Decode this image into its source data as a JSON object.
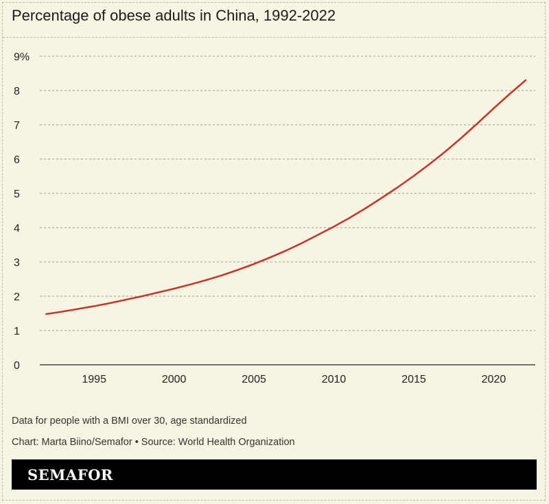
{
  "title": "Percentage of obese adults in China, 1992-2022",
  "chart_data": {
    "type": "line",
    "title": "Percentage of obese adults in China, 1992-2022",
    "xlabel": "",
    "ylabel": "",
    "xlim": [
      1991.6,
      2022.6
    ],
    "ylim": [
      0,
      9
    ],
    "grid": true,
    "y_ticks": [
      0,
      1,
      2,
      3,
      4,
      5,
      6,
      7,
      8,
      9
    ],
    "y_tick_labels": [
      "0",
      "1",
      "2",
      "3",
      "4",
      "5",
      "6",
      "7",
      "8",
      "9%"
    ],
    "x_ticks": [
      1995,
      2000,
      2005,
      2010,
      2015,
      2020
    ],
    "x_tick_labels": [
      "1995",
      "2000",
      "2005",
      "2010",
      "2015",
      "2020"
    ],
    "series": [
      {
        "name": "Obese adults (%)",
        "color": "#c0392b",
        "x": [
          1992,
          1993,
          1994,
          1995,
          1996,
          1997,
          1998,
          1999,
          2000,
          2001,
          2002,
          2003,
          2004,
          2005,
          2006,
          2007,
          2008,
          2009,
          2010,
          2011,
          2012,
          2013,
          2014,
          2015,
          2016,
          2017,
          2018,
          2019,
          2020,
          2021,
          2022
        ],
        "values": [
          1.48,
          1.55,
          1.63,
          1.71,
          1.8,
          1.9,
          2.0,
          2.11,
          2.22,
          2.34,
          2.47,
          2.61,
          2.77,
          2.94,
          3.13,
          3.33,
          3.55,
          3.79,
          4.03,
          4.29,
          4.57,
          4.87,
          5.18,
          5.51,
          5.86,
          6.23,
          6.63,
          7.05,
          7.48,
          7.9,
          8.3
        ]
      }
    ]
  },
  "notes": {
    "data_note": "Data for people with a BMI over 30, age standardized",
    "credit": "Chart: Marta Biino/Semafor • Source: World Health Organization"
  },
  "brand": {
    "logo_text": "SEMAFOR"
  }
}
